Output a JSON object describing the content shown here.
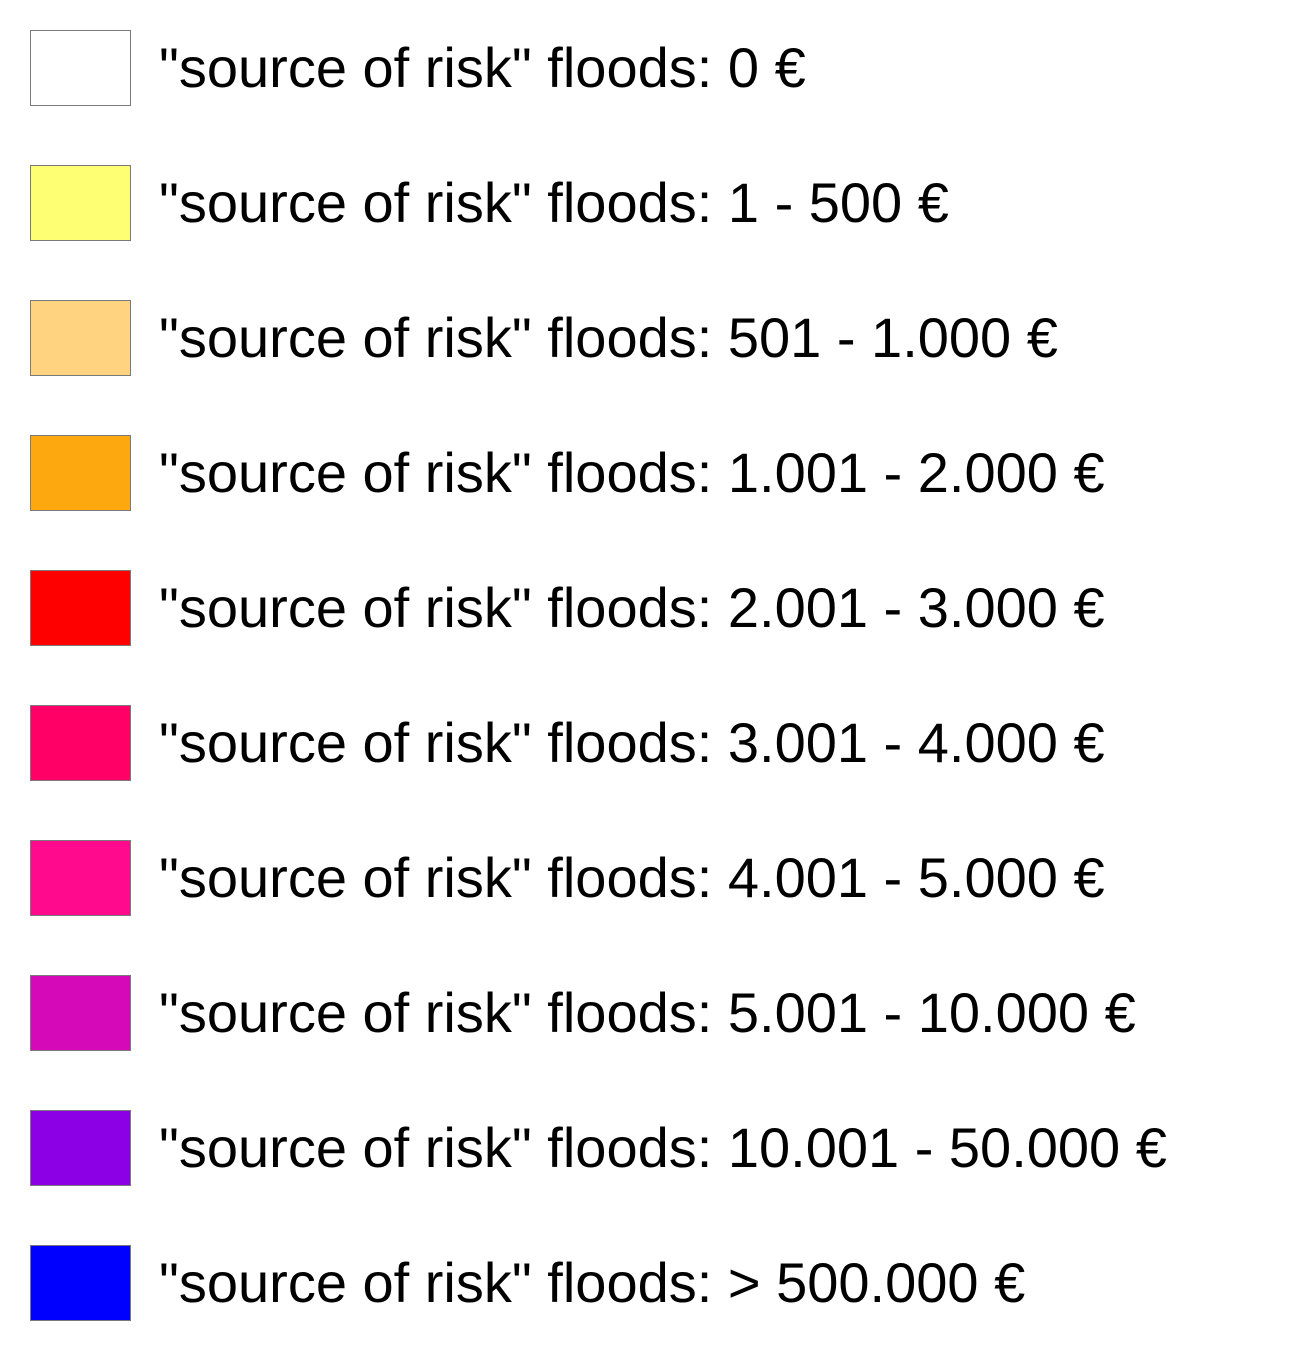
{
  "legend": {
    "items": [
      {
        "label": "\"source of risk\" floods: 0 €",
        "color": "#FFFFFF"
      },
      {
        "label": "\"source of risk\" floods: 1 - 500 €",
        "color": "#FFFF73"
      },
      {
        "label": "\"source of risk\" floods: 501 - 1.000 €",
        "color": "#FFD37F"
      },
      {
        "label": "\"source of risk\" floods: 1.001 - 2.000 €",
        "color": "#FCA80E"
      },
      {
        "label": "\"source of risk\" floods: 2.001 - 3.000 €",
        "color": "#FF0000"
      },
      {
        "label": "\"source of risk\" floods: 3.001 - 4.000 €",
        "color": "#FF0066"
      },
      {
        "label": "\"source of risk\" floods: 4.001 - 5.000 €",
        "color": "#FF0A8C"
      },
      {
        "label": "\"source of risk\" floods: 5.001 - 10.000 €",
        "color": "#D509B8"
      },
      {
        "label": "\"source of risk\" floods: 10.001 - 50.000 €",
        "color": "#8C00E6"
      },
      {
        "label": "\"source of risk\" floods: > 500.000 €",
        "color": "#0000FF"
      }
    ]
  }
}
